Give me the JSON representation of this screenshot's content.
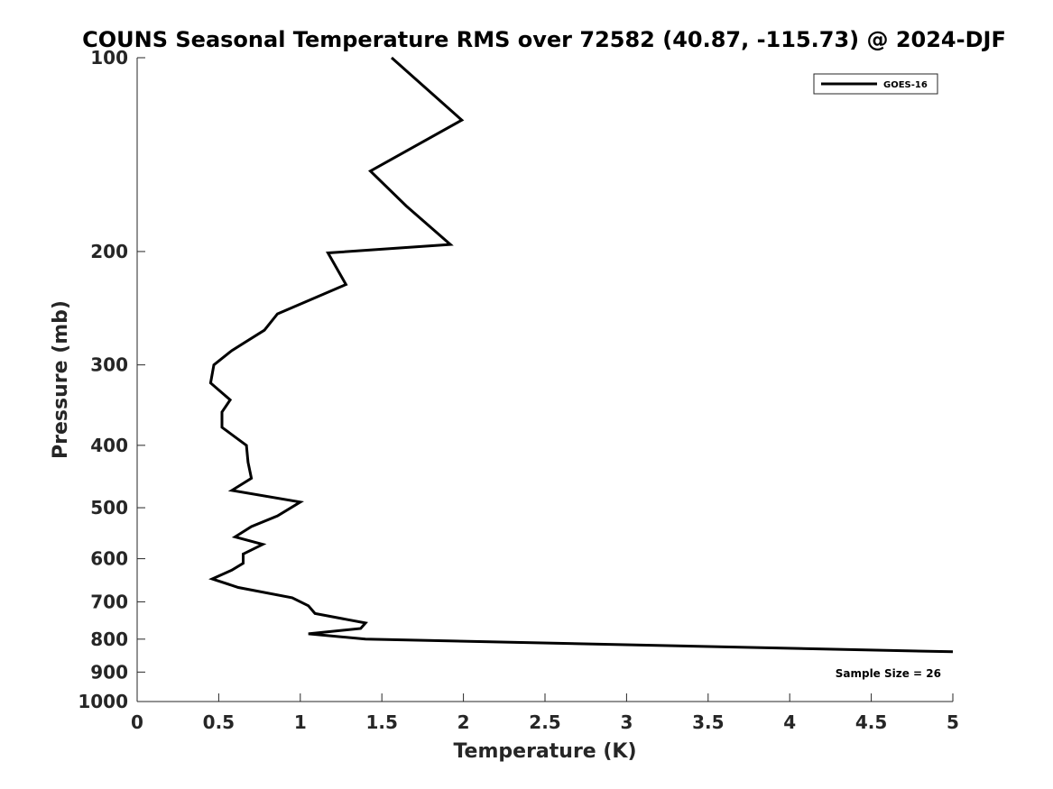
{
  "chart_data": {
    "type": "line",
    "title": "COUNS Seasonal Temperature RMS over 72582 (40.87, -115.73) @ 2024-DJF",
    "xlabel": "Temperature (K)",
    "ylabel": "Pressure (mb)",
    "xlim": [
      0,
      5
    ],
    "ylim": [
      100,
      1000
    ],
    "y_scale": "log",
    "y_reversed": true,
    "grid": false,
    "legend_position": "top-right",
    "x_ticks": [
      "0",
      "0.5",
      "1",
      "1.5",
      "2",
      "2.5",
      "3",
      "3.5",
      "4",
      "4.5",
      "5"
    ],
    "y_ticks": [
      "100",
      "200",
      "300",
      "400",
      "500",
      "600",
      "700",
      "800",
      "900",
      "1000"
    ],
    "series": [
      {
        "name": "GOES-16",
        "color": "#000000",
        "points": [
          [
            1.56,
            100
          ],
          [
            1.99,
            125
          ],
          [
            1.43,
            150
          ],
          [
            1.65,
            170
          ],
          [
            1.92,
            195
          ],
          [
            1.17,
            201
          ],
          [
            1.28,
            225
          ],
          [
            0.86,
            250
          ],
          [
            0.78,
            265
          ],
          [
            0.58,
            285
          ],
          [
            0.47,
            300
          ],
          [
            0.45,
            320
          ],
          [
            0.57,
            340
          ],
          [
            0.52,
            355
          ],
          [
            0.52,
            375
          ],
          [
            0.67,
            400
          ],
          [
            0.68,
            425
          ],
          [
            0.7,
            450
          ],
          [
            0.58,
            470
          ],
          [
            1.0,
            490
          ],
          [
            0.86,
            515
          ],
          [
            0.7,
            535
          ],
          [
            0.6,
            555
          ],
          [
            0.77,
            570
          ],
          [
            0.65,
            590
          ],
          [
            0.65,
            610
          ],
          [
            0.58,
            625
          ],
          [
            0.46,
            645
          ],
          [
            0.62,
            665
          ],
          [
            0.95,
            690
          ],
          [
            1.05,
            710
          ],
          [
            1.09,
            730
          ],
          [
            1.4,
            755
          ],
          [
            1.37,
            770
          ],
          [
            1.05,
            785
          ],
          [
            1.4,
            800
          ],
          [
            5.0,
            837
          ]
        ]
      }
    ],
    "annotations": [
      {
        "text": "Sample Size = 26",
        "position": "bottom-right"
      }
    ]
  }
}
